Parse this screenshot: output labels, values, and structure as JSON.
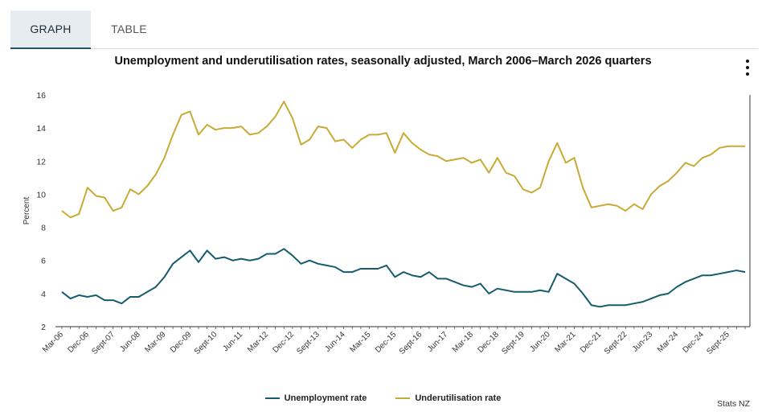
{
  "tabs": {
    "graph": "GRAPH",
    "table": "TABLE"
  },
  "credit": "Stats NZ",
  "colors": {
    "unemployment": "#175b6e",
    "underutilisation": "#c9aa35"
  },
  "chart_data": {
    "type": "line",
    "title": "Unemployment and underutilisation rates, seasonally adjusted, March 2006–March 2026 quarters",
    "xlabel": "",
    "ylabel": "Percent",
    "ylim": [
      2,
      16
    ],
    "yticks": [
      2,
      4,
      6,
      8,
      10,
      12,
      14,
      16
    ],
    "grid": false,
    "legend_position": "bottom",
    "x": [
      "Mar-06",
      "Jun-06",
      "Sept-06",
      "Dec-06",
      "Mar-07",
      "Jun-07",
      "Sept-07",
      "Dec-07",
      "Mar-08",
      "Jun-08",
      "Sept-08",
      "Dec-08",
      "Mar-09",
      "Jun-09",
      "Sept-09",
      "Dec-09",
      "Mar-10",
      "Jun-10",
      "Sept-10",
      "Dec-10",
      "Mar-11",
      "Jun-11",
      "Sept-11",
      "Dec-11",
      "Mar-12",
      "Jun-12",
      "Sept-12",
      "Dec-12",
      "Mar-13",
      "Jun-13",
      "Sept-13",
      "Dec-13",
      "Mar-14",
      "Jun-14",
      "Sept-14",
      "Dec-14",
      "Mar-15",
      "Jun-15",
      "Sept-15",
      "Dec-15",
      "Mar-16",
      "Jun-16",
      "Sept-16",
      "Dec-16",
      "Mar-17",
      "Jun-17",
      "Sept-17",
      "Dec-17",
      "Mar-18",
      "Jun-18",
      "Sept-18",
      "Dec-18",
      "Mar-19",
      "Jun-19",
      "Sept-19",
      "Dec-19",
      "Mar-20",
      "Jun-20",
      "Sept-20",
      "Dec-20",
      "Mar-21",
      "Jun-21",
      "Sept-21",
      "Dec-21",
      "Mar-22",
      "Jun-22",
      "Sept-22",
      "Dec-22",
      "Mar-23",
      "Jun-23",
      "Sept-23",
      "Dec-23",
      "Mar-24",
      "Jun-24",
      "Sept-24",
      "Dec-24",
      "Mar-25",
      "Jun-25",
      "Sept-25",
      "Dec-25",
      "Mar-26"
    ],
    "xtick_labels": [
      "Mar-06",
      "Dec-06",
      "Sept-07",
      "Jun-08",
      "Mar-09",
      "Dec-09",
      "Sept-10",
      "Jun-11",
      "Mar-12",
      "Dec-12",
      "Sept-13",
      "Jun-14",
      "Mar-15",
      "Dec-15",
      "Sept-16",
      "Jun-17",
      "Mar-18",
      "Dec-18",
      "Sept-19",
      "Jun-20",
      "Mar-21",
      "Dec-21",
      "Sept-22",
      "Jun-23",
      "Mar-24",
      "Dec-24",
      "Sept-25"
    ],
    "series": [
      {
        "name": "Unemployment rate",
        "values": [
          4.1,
          3.7,
          3.9,
          3.8,
          3.9,
          3.6,
          3.6,
          3.4,
          3.8,
          3.8,
          4.1,
          4.4,
          5.0,
          5.8,
          6.2,
          6.6,
          5.9,
          6.6,
          6.1,
          6.2,
          6.0,
          6.1,
          6.0,
          6.1,
          6.4,
          6.4,
          6.7,
          6.3,
          5.8,
          6.0,
          5.8,
          5.7,
          5.6,
          5.3,
          5.3,
          5.5,
          5.5,
          5.5,
          5.7,
          5.0,
          5.3,
          5.1,
          5.0,
          5.3,
          4.9,
          4.9,
          4.7,
          4.5,
          4.4,
          4.6,
          4.0,
          4.3,
          4.2,
          4.1,
          4.1,
          4.1,
          4.2,
          4.1,
          5.2,
          4.9,
          4.6,
          4.0,
          3.3,
          3.2,
          3.3,
          3.3,
          3.3,
          3.4,
          3.5,
          3.7,
          3.9,
          4.0,
          4.4,
          4.7,
          4.9,
          5.1,
          5.1,
          5.2,
          5.3,
          5.4,
          5.3
        ]
      },
      {
        "name": "Underutilisation rate",
        "values": [
          9.0,
          8.6,
          8.8,
          10.4,
          9.9,
          9.8,
          9.0,
          9.2,
          10.3,
          10.0,
          10.5,
          11.2,
          12.2,
          13.6,
          14.8,
          15.0,
          13.6,
          14.2,
          13.9,
          14.0,
          14.0,
          14.1,
          13.6,
          13.7,
          14.1,
          14.7,
          15.6,
          14.6,
          13.0,
          13.3,
          14.1,
          14.0,
          13.2,
          13.3,
          12.8,
          13.3,
          13.6,
          13.6,
          13.7,
          12.5,
          13.7,
          13.1,
          12.7,
          12.4,
          12.3,
          12.0,
          12.1,
          12.2,
          11.9,
          12.1,
          11.3,
          12.2,
          11.3,
          11.1,
          10.3,
          10.1,
          10.4,
          12.0,
          13.1,
          11.9,
          12.2,
          10.4,
          9.2,
          9.3,
          9.4,
          9.3,
          9.0,
          9.4,
          9.1,
          10.0,
          10.5,
          10.8,
          11.3,
          11.9,
          11.7,
          12.2,
          12.4,
          12.8,
          12.9,
          12.9,
          12.9
        ]
      }
    ]
  }
}
